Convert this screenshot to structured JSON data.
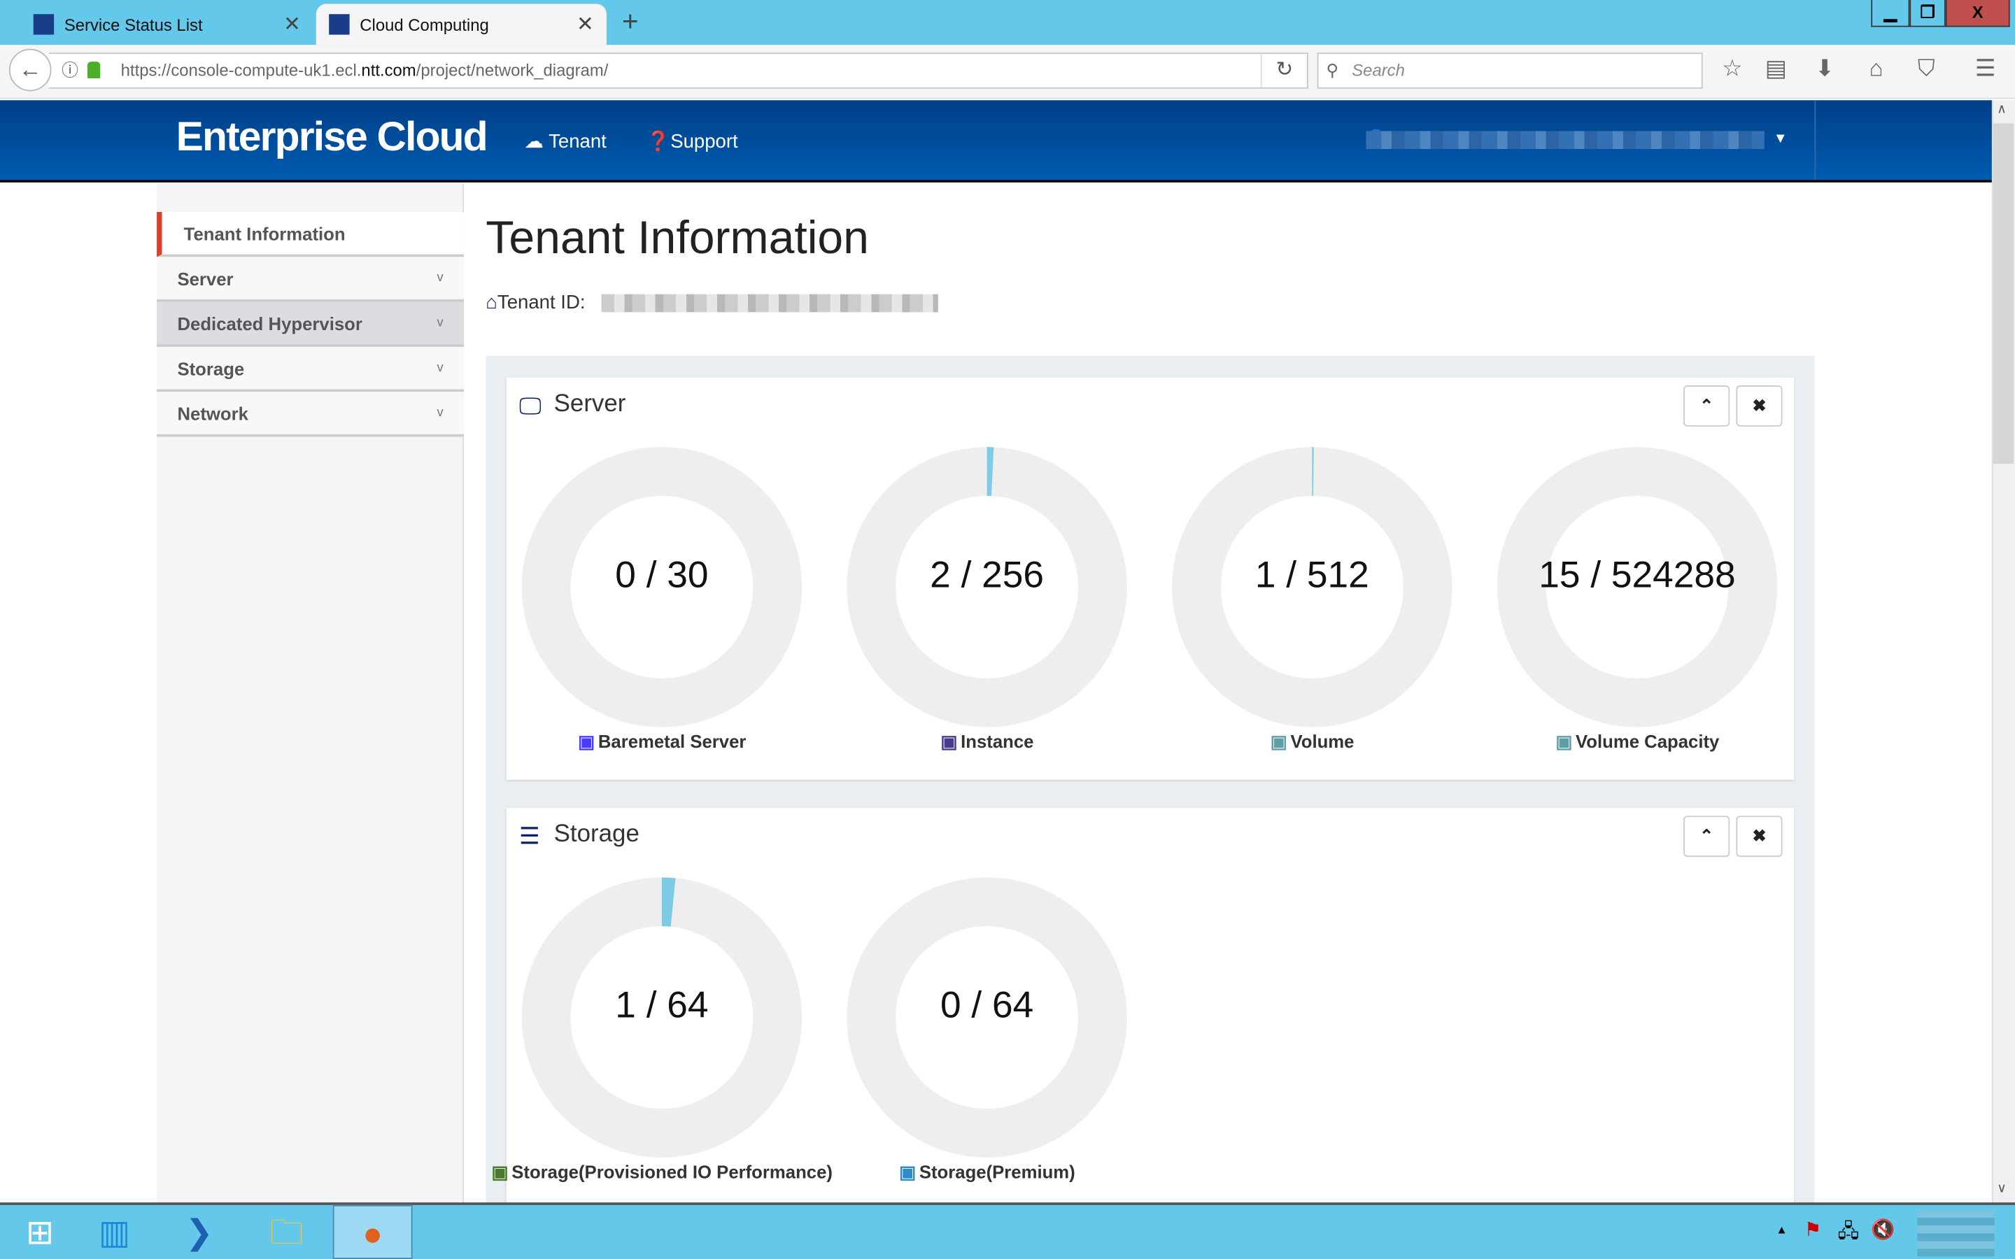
{
  "browser": {
    "tabs": [
      {
        "label": "Service Status List",
        "active": false
      },
      {
        "label": "Cloud Computing",
        "active": true
      }
    ],
    "url_prefix": "https://console-compute-uk1.ecl.",
    "url_domain": "ntt.com",
    "url_suffix": "/project/network_diagram/",
    "search_placeholder": "Search",
    "window_controls": {
      "minimize": "▁",
      "restore": "❐",
      "close": "X"
    }
  },
  "header": {
    "brand": "Enterprise Cloud",
    "nav": [
      {
        "label": "Tenant",
        "icon": "cloud-icon"
      },
      {
        "label": "Support",
        "icon": "question-circle-icon"
      }
    ]
  },
  "sidebar": {
    "items": [
      {
        "label": "Tenant Information",
        "active": true
      },
      {
        "label": "Server"
      },
      {
        "label": "Dedicated Hypervisor"
      },
      {
        "label": "Storage"
      },
      {
        "label": "Network"
      }
    ]
  },
  "main": {
    "title": "Tenant Information",
    "tenant_id_label": "Tenant ID:",
    "panels": [
      {
        "title": "Server",
        "items": [
          {
            "used": 0,
            "total": 30,
            "value": "0 / 30",
            "label": "Baremetal Server",
            "icon_color": "#4a3cff"
          },
          {
            "used": 2,
            "total": 256,
            "value": "2 / 256",
            "label": "Instance",
            "icon_color": "#4a3a8c"
          },
          {
            "used": 1,
            "total": 512,
            "value": "1 / 512",
            "label": "Volume",
            "icon_color": "#5e9ea8"
          },
          {
            "used": 15,
            "total": 524288,
            "value": "15 / 524288",
            "label": "Volume Capacity",
            "icon_color": "#5e9ea8"
          }
        ]
      },
      {
        "title": "Storage",
        "items": [
          {
            "used": 1,
            "total": 64,
            "value": "1 / 64",
            "label": "Storage(Provisioned IO Performance)",
            "icon_color": "#4a7a2c"
          },
          {
            "used": 0,
            "total": 64,
            "value": "0 / 64",
            "label": "Storage(Premium)",
            "icon_color": "#2a8ccc"
          }
        ]
      }
    ]
  },
  "colors": {
    "accent": "#7ecbe6",
    "track": "#eeeeee",
    "header": "#004a99",
    "active_marker": "#d9412c"
  }
}
